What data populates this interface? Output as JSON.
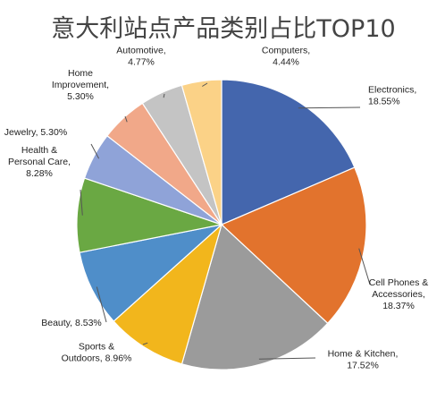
{
  "chart_data": {
    "type": "pie",
    "title": "意大利站点产品类别占比TOP10",
    "start_angle_deg": 0,
    "direction": "clockwise",
    "slices": [
      {
        "label": "Electronics",
        "value": 18.55,
        "display": "18.55%",
        "color": "#4466ad"
      },
      {
        "label": "Cell Phones & Accessories",
        "value": 18.37,
        "display": "18.37%",
        "color": "#e2732d"
      },
      {
        "label": "Home & Kitchen",
        "value": 17.52,
        "display": "17.52%",
        "color": "#9b9b9b"
      },
      {
        "label": "Sports & Outdoors",
        "value": 8.96,
        "display": "8.96%",
        "color": "#f2b61c"
      },
      {
        "label": "Beauty",
        "value": 8.53,
        "display": "8.53%",
        "color": "#4f8ec9"
      },
      {
        "label": "Health & Personal Care",
        "value": 8.28,
        "display": "8.28%",
        "color": "#6aa843"
      },
      {
        "label": "Jewelry",
        "value": 5.3,
        "display": "5.30%",
        "color": "#8fa3d8"
      },
      {
        "label": "Home Improvement",
        "value": 5.3,
        "display": "5.30%",
        "color": "#f1a889"
      },
      {
        "label": "Automotive",
        "value": 4.77,
        "display": "4.77%",
        "color": "#c4c4c4"
      },
      {
        "label": "Computers",
        "value": 4.44,
        "display": "4.44%",
        "color": "#fbd287"
      }
    ]
  },
  "labels": [
    {
      "lines": [
        "Electronics,",
        "18.55%"
      ]
    },
    {
      "lines": [
        "Cell Phones &",
        "Accessories,",
        "18.37%"
      ]
    },
    {
      "lines": [
        "Home & Kitchen,",
        "17.52%"
      ]
    },
    {
      "lines": [
        "Sports &",
        "Outdoors, 8.96%"
      ]
    },
    {
      "lines": [
        "Beauty, 8.53%"
      ]
    },
    {
      "lines": [
        "Health &",
        "Personal Care,",
        "8.28%"
      ]
    },
    {
      "lines": [
        "Jewelry, 5.30%"
      ]
    },
    {
      "lines": [
        "Home",
        "Improvement,",
        "5.30%"
      ]
    },
    {
      "lines": [
        "Automotive,",
        "4.77%"
      ]
    },
    {
      "lines": [
        "Computers,",
        "4.44%"
      ]
    }
  ]
}
